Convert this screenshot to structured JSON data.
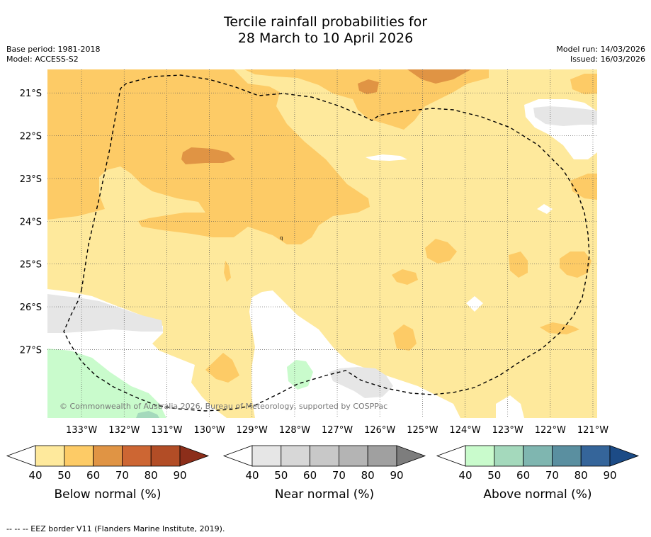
{
  "title_line1": "Tercile rainfall probabilities for",
  "title_line2": "28 March to 10 April 2026",
  "base_period": "Base period: 1981-2018",
  "model": "Model: ACCESS-S2",
  "model_run": "Model run: 14/03/2026",
  "issued": "Issued: 16/03/2026",
  "copyright": "© Commonwealth of Australia 2026, Bureau of Meteorology, supported by COSPPac",
  "footer_note": "--  --  -- EEZ border V11 (Flanders Marine Institute, 2019).",
  "colors": {
    "below": [
      "#fee99c",
      "#fdcb66",
      "#e09444",
      "#cd6633",
      "#b24d26",
      "#8c2e1a"
    ],
    "near": [
      "#e6e6e6",
      "#d7d7d7",
      "#c8c8c8",
      "#b4b4b4",
      "#a0a0a0",
      "#7d7d7d"
    ],
    "above": [
      "#c9fbcc",
      "#a4d9bc",
      "#7fb6b0",
      "#5a8fa0",
      "#35659a",
      "#1c4b86"
    ],
    "grid": "#555555",
    "land_white": "#ffffff"
  },
  "chart_data": {
    "type": "heatmap",
    "title": "Tercile rainfall probabilities for 28 March to 10 April 2026",
    "x_ticks": [
      "133°W",
      "132°W",
      "131°W",
      "130°W",
      "129°W",
      "128°W",
      "127°W",
      "126°W",
      "125°W",
      "124°W",
      "123°W",
      "122°W",
      "121°W"
    ],
    "x_values": [
      -133,
      -132,
      -131,
      -130,
      -129,
      -128,
      -127,
      -126,
      -125,
      -124,
      -123,
      -122,
      -121
    ],
    "y_ticks": [
      "21°S",
      "22°S",
      "23°S",
      "24°S",
      "25°S",
      "26°S",
      "27°S"
    ],
    "y_values": [
      -21,
      -22,
      -23,
      -24,
      -25,
      -26,
      -27
    ],
    "xlim": [
      -133.8,
      -120.9
    ],
    "ylim": [
      -28.6,
      -20.45
    ],
    "colorbars": [
      {
        "label": "Below normal (%)",
        "ticks": [
          "40",
          "50",
          "60",
          "70",
          "80",
          "90"
        ],
        "values": [
          40,
          50,
          60,
          70,
          80,
          90
        ]
      },
      {
        "label": "Near normal (%)",
        "ticks": [
          "40",
          "50",
          "60",
          "70",
          "80",
          "90"
        ],
        "values": [
          40,
          50,
          60,
          70,
          80,
          90
        ]
      },
      {
        "label": "Above normal (%)",
        "ticks": [
          "40",
          "50",
          "60",
          "70",
          "80",
          "90"
        ],
        "values": [
          40,
          50,
          60,
          70,
          80,
          90
        ]
      }
    ],
    "regions": [
      {
        "category": "below",
        "level": 1,
        "desc": "40-50% below normal across most of domain"
      },
      {
        "category": "below",
        "level": 2,
        "desc": "50-60% below normal in northwest quadrant"
      },
      {
        "category": "below",
        "level": 3,
        "desc": "60-70% below normal small patches"
      },
      {
        "category": "near",
        "level": 1,
        "desc": "40-50% near normal patches"
      },
      {
        "category": "above",
        "level": 1,
        "desc": "40-50% above normal southwest"
      },
      {
        "category": "above",
        "level": 2,
        "desc": "50-60% above normal small patch"
      }
    ]
  }
}
